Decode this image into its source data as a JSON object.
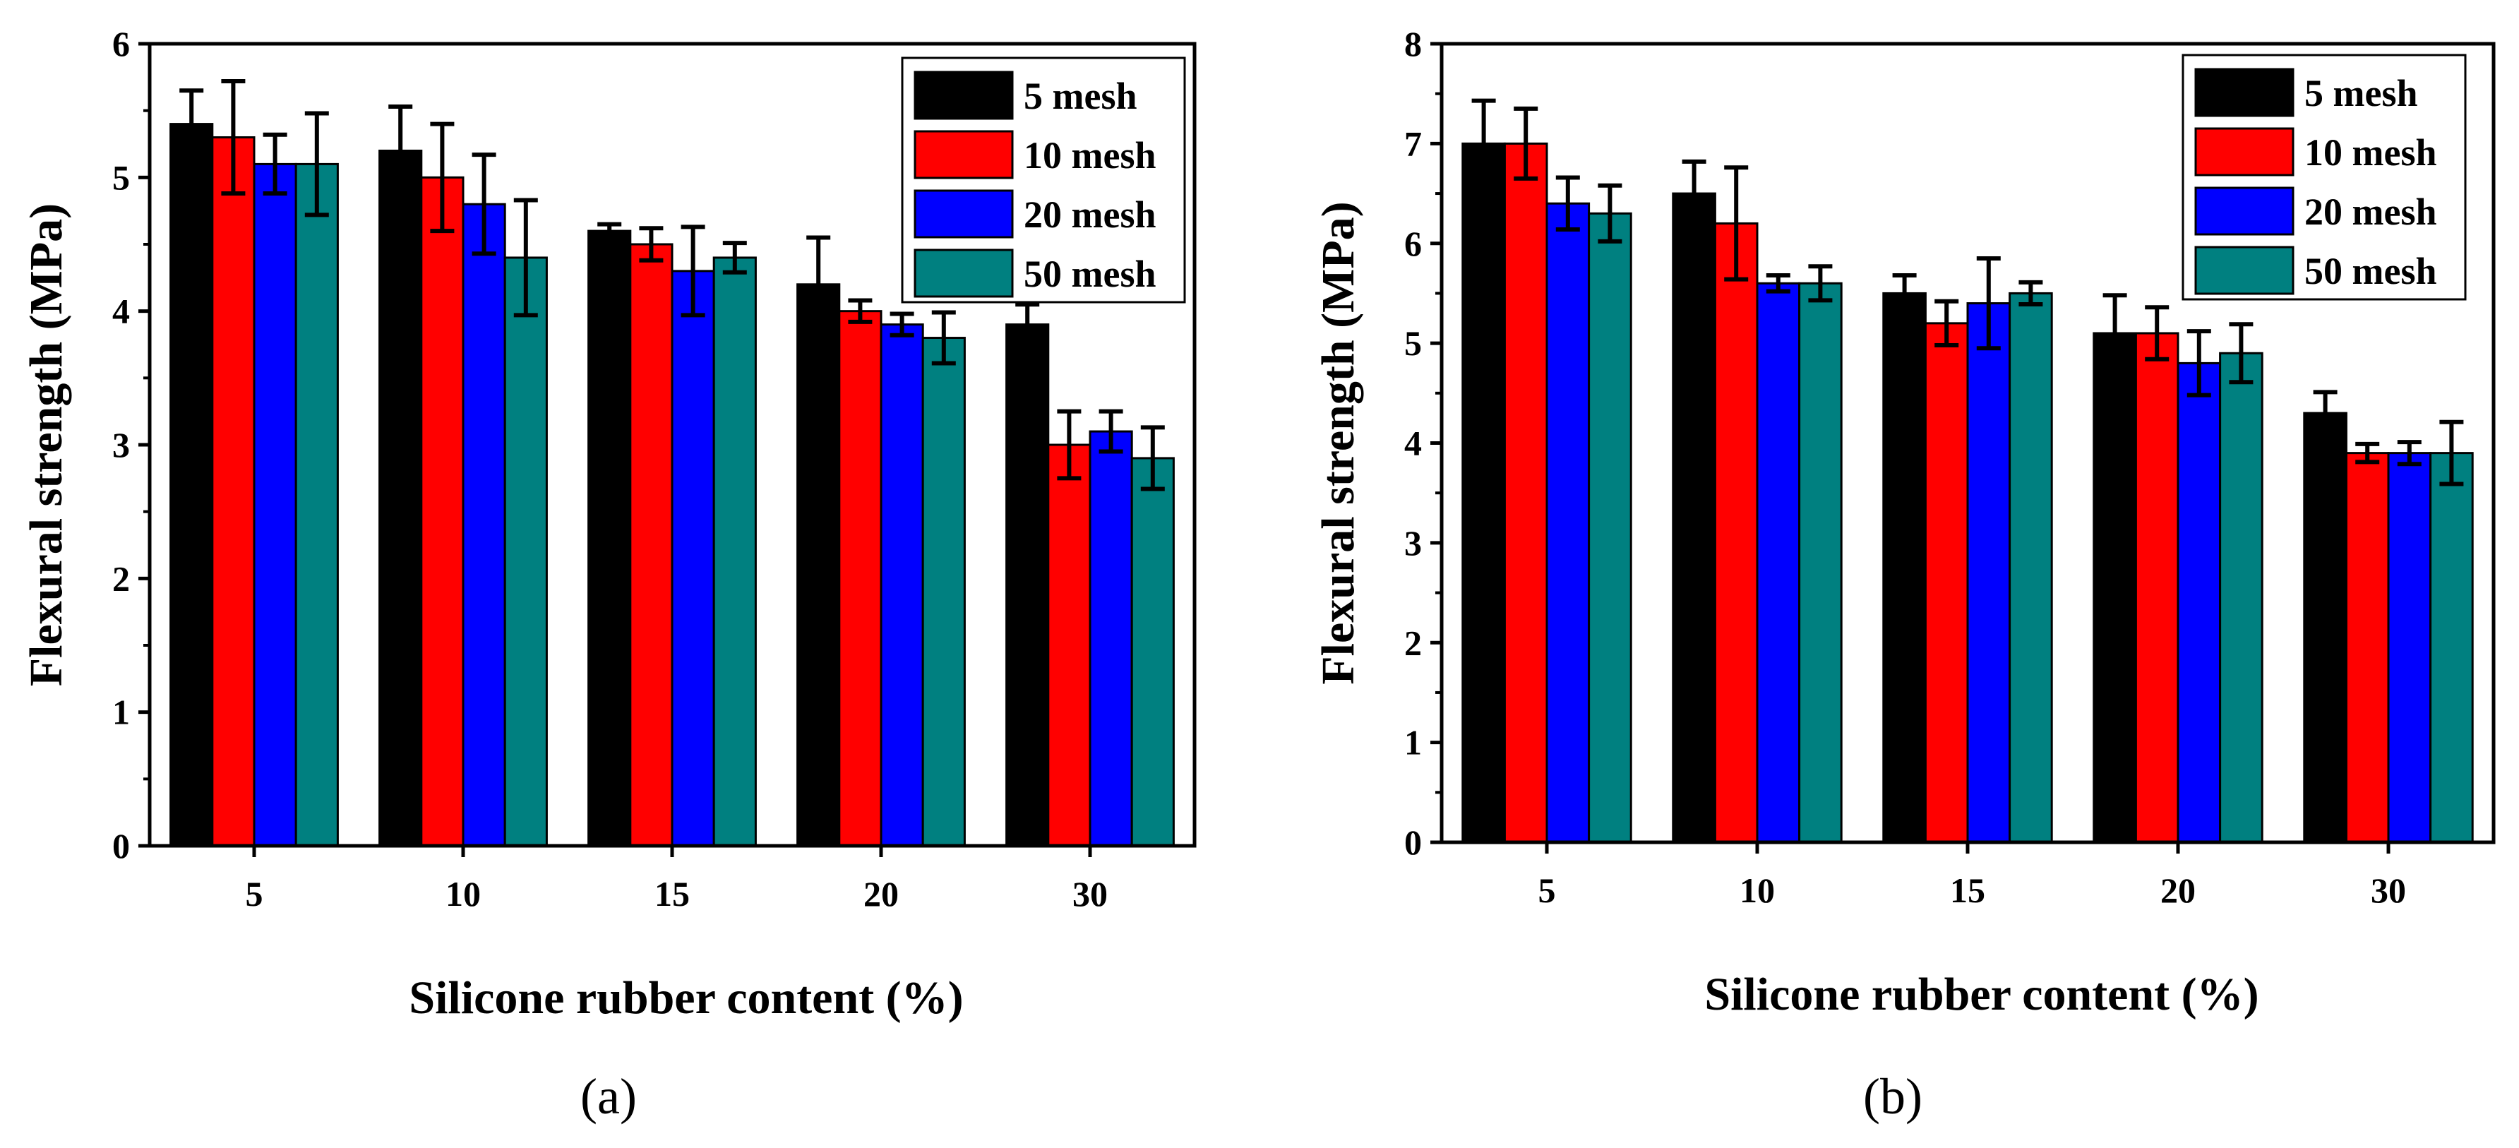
{
  "chart_data": [
    {
      "type": "bar",
      "caption": "(a)",
      "title": "",
      "xlabel": "Silicone rubber content (%)",
      "ylabel": "Flexural strength (MPa)",
      "categories": [
        "5",
        "10",
        "15",
        "20",
        "30"
      ],
      "ylim": [
        0,
        6
      ],
      "yticks": [
        "0",
        "1",
        "2",
        "3",
        "4",
        "5",
        "6"
      ],
      "legend_position": "top-right",
      "series": [
        {
          "name": "5 mesh",
          "color": "#000000",
          "values": [
            5.4,
            5.2,
            4.6,
            4.2,
            3.9
          ],
          "errors": [
            0.25,
            0.33,
            0.05,
            0.35,
            0.15
          ]
        },
        {
          "name": "10 mesh",
          "color": "#ff0000",
          "values": [
            5.3,
            5.0,
            4.5,
            4.0,
            3.0
          ],
          "errors": [
            0.42,
            0.4,
            0.12,
            0.08,
            0.25
          ]
        },
        {
          "name": "20 mesh",
          "color": "#0000ff",
          "values": [
            5.1,
            4.8,
            4.3,
            3.9,
            3.1
          ],
          "errors": [
            0.22,
            0.37,
            0.33,
            0.08,
            0.15
          ]
        },
        {
          "name": "50 mesh",
          "color": "#008080",
          "values": [
            5.1,
            4.4,
            4.4,
            3.8,
            2.9
          ],
          "errors": [
            0.38,
            0.43,
            0.11,
            0.19,
            0.23
          ]
        }
      ]
    },
    {
      "type": "bar",
      "caption": "(b)",
      "title": "",
      "xlabel": "Silicone rubber content (%)",
      "ylabel": "Flexural strength (MPa)",
      "categories": [
        "5",
        "10",
        "15",
        "20",
        "30"
      ],
      "ylim": [
        0,
        8
      ],
      "yticks": [
        "0",
        "1",
        "2",
        "3",
        "4",
        "5",
        "6",
        "7",
        "8"
      ],
      "legend_position": "top-right",
      "series": [
        {
          "name": "5 mesh",
          "color": "#000000",
          "values": [
            7.0,
            6.5,
            5.5,
            5.1,
            4.3
          ],
          "errors": [
            0.43,
            0.32,
            0.18,
            0.38,
            0.21
          ]
        },
        {
          "name": "10 mesh",
          "color": "#ff0000",
          "values": [
            7.0,
            6.2,
            5.2,
            5.1,
            3.9
          ],
          "errors": [
            0.35,
            0.56,
            0.22,
            0.26,
            0.09
          ]
        },
        {
          "name": "20 mesh",
          "color": "#0000ff",
          "values": [
            6.4,
            5.6,
            5.4,
            4.8,
            3.9
          ],
          "errors": [
            0.26,
            0.08,
            0.45,
            0.32,
            0.11
          ]
        },
        {
          "name": "50 mesh",
          "color": "#008080",
          "values": [
            6.3,
            5.6,
            5.5,
            4.9,
            3.9
          ],
          "errors": [
            0.28,
            0.17,
            0.11,
            0.29,
            0.31
          ]
        }
      ]
    }
  ]
}
